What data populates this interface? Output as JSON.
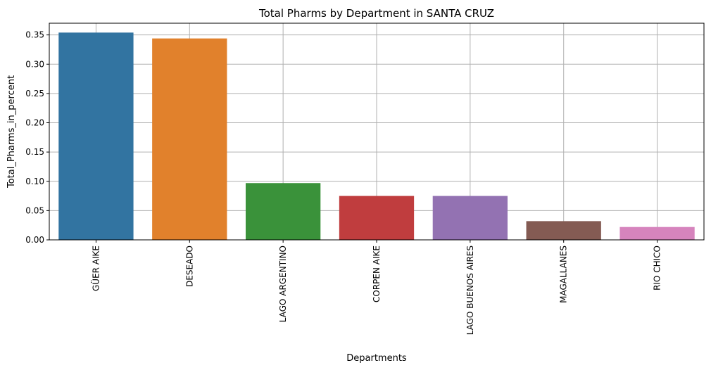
{
  "chart_data": {
    "type": "bar",
    "title": "Total Pharms by Department in SANTA CRUZ",
    "xlabel": "Departments",
    "ylabel": "Total_Pharms_in_percent",
    "categories": [
      "GÜER AIKE",
      "DESEADO",
      "LAGO ARGENTINO",
      "CORPEN AIKE",
      "LAGO BUENOS AIRES",
      "MAGALLANES",
      "RIO CHICO"
    ],
    "values": [
      0.354,
      0.344,
      0.097,
      0.075,
      0.075,
      0.032,
      0.022
    ],
    "colors": [
      "#3274a1",
      "#e1812c",
      "#3a923a",
      "#c03d3e",
      "#9372b2",
      "#845b53",
      "#d684bd"
    ],
    "ylim": [
      0,
      0.37
    ],
    "yticks": [
      0.0,
      0.05,
      0.1,
      0.15,
      0.2,
      0.25,
      0.3,
      0.35
    ],
    "ytick_labels": [
      "0.00",
      "0.05",
      "0.10",
      "0.15",
      "0.20",
      "0.25",
      "0.30",
      "0.35"
    ],
    "grid": true,
    "legend": "none"
  }
}
